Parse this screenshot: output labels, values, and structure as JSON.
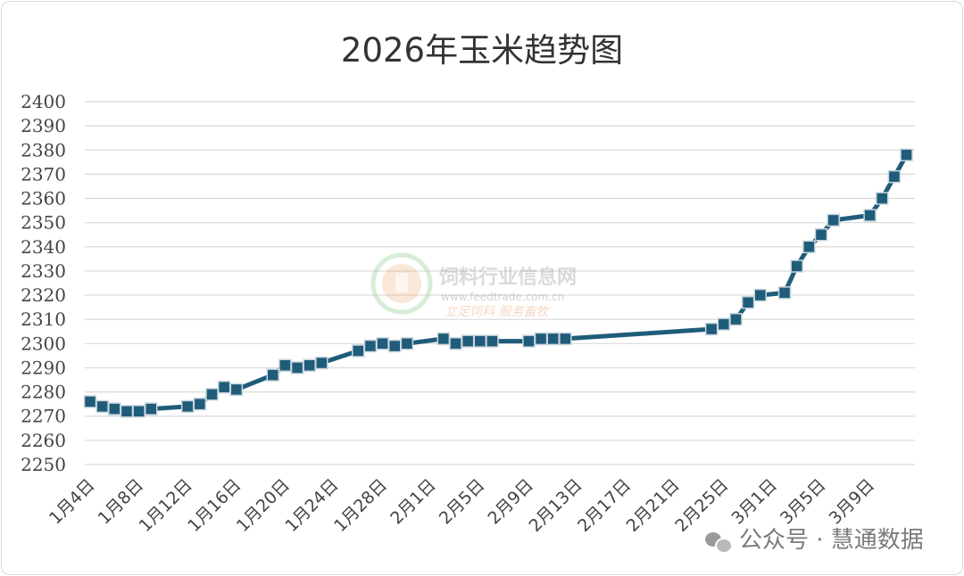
{
  "chart_data": {
    "type": "line",
    "title": "2026年玉米趋势图",
    "ylim": [
      2250,
      2400
    ],
    "ytick_step": 10,
    "x_start": "1月4日",
    "x_tick_step_days": 4,
    "x_ticks": [
      "1月4日",
      "1月8日",
      "1月12日",
      "1月16日",
      "1月20日",
      "1月24日",
      "1月28日",
      "2月1日",
      "2月5日",
      "2月9日",
      "2月13日",
      "2月17日",
      "2月21日",
      "2月25日",
      "3月1日",
      "3月5日",
      "3月9日"
    ],
    "grid": true,
    "legend": "none",
    "line_color": "#1f5c7a",
    "marker_color": "#1f5c7a",
    "series": [
      {
        "values": [
          [
            "1月4日",
            2276
          ],
          [
            "1月5日",
            2274
          ],
          [
            "1月6日",
            2273
          ],
          [
            "1月7日",
            2272
          ],
          [
            "1月8日",
            2272
          ],
          [
            "1月9日",
            2273
          ],
          [
            "1月12日",
            2274
          ],
          [
            "1月13日",
            2275
          ],
          [
            "1月14日",
            2279
          ],
          [
            "1月15日",
            2282
          ],
          [
            "1月16日",
            2281
          ],
          [
            "1月19日",
            2287
          ],
          [
            "1月20日",
            2291
          ],
          [
            "1月21日",
            2290
          ],
          [
            "1月22日",
            2291
          ],
          [
            "1月23日",
            2292
          ],
          [
            "1月26日",
            2297
          ],
          [
            "1月27日",
            2299
          ],
          [
            "1月28日",
            2300
          ],
          [
            "1月29日",
            2299
          ],
          [
            "1月30日",
            2300
          ],
          [
            "2月2日",
            2302
          ],
          [
            "2月3日",
            2300
          ],
          [
            "2月4日",
            2301
          ],
          [
            "2月5日",
            2301
          ],
          [
            "2月6日",
            2301
          ],
          [
            "2月9日",
            2301
          ],
          [
            "2月10日",
            2302
          ],
          [
            "2月11日",
            2302
          ],
          [
            "2月12日",
            2302
          ],
          [
            "2月24日",
            2306
          ],
          [
            "2月25日",
            2308
          ],
          [
            "2月26日",
            2310
          ],
          [
            "2月27日",
            2317
          ],
          [
            "2月28日",
            2320
          ],
          [
            "3月2日",
            2321
          ],
          [
            "3月3日",
            2332
          ],
          [
            "3月4日",
            2340
          ],
          [
            "3月5日",
            2345
          ],
          [
            "3月6日",
            2351
          ],
          [
            "3月9日",
            2353
          ],
          [
            "3月10日",
            2360
          ],
          [
            "3月11日",
            2369
          ],
          [
            "3月12日",
            2378
          ]
        ]
      }
    ]
  },
  "watermark": {
    "name": "饲料行业信息网",
    "url": "www.feedtrade.com.cn",
    "slogan": "立足饲料 服务畜牧"
  },
  "credit": "公众号 · 慧通数据"
}
